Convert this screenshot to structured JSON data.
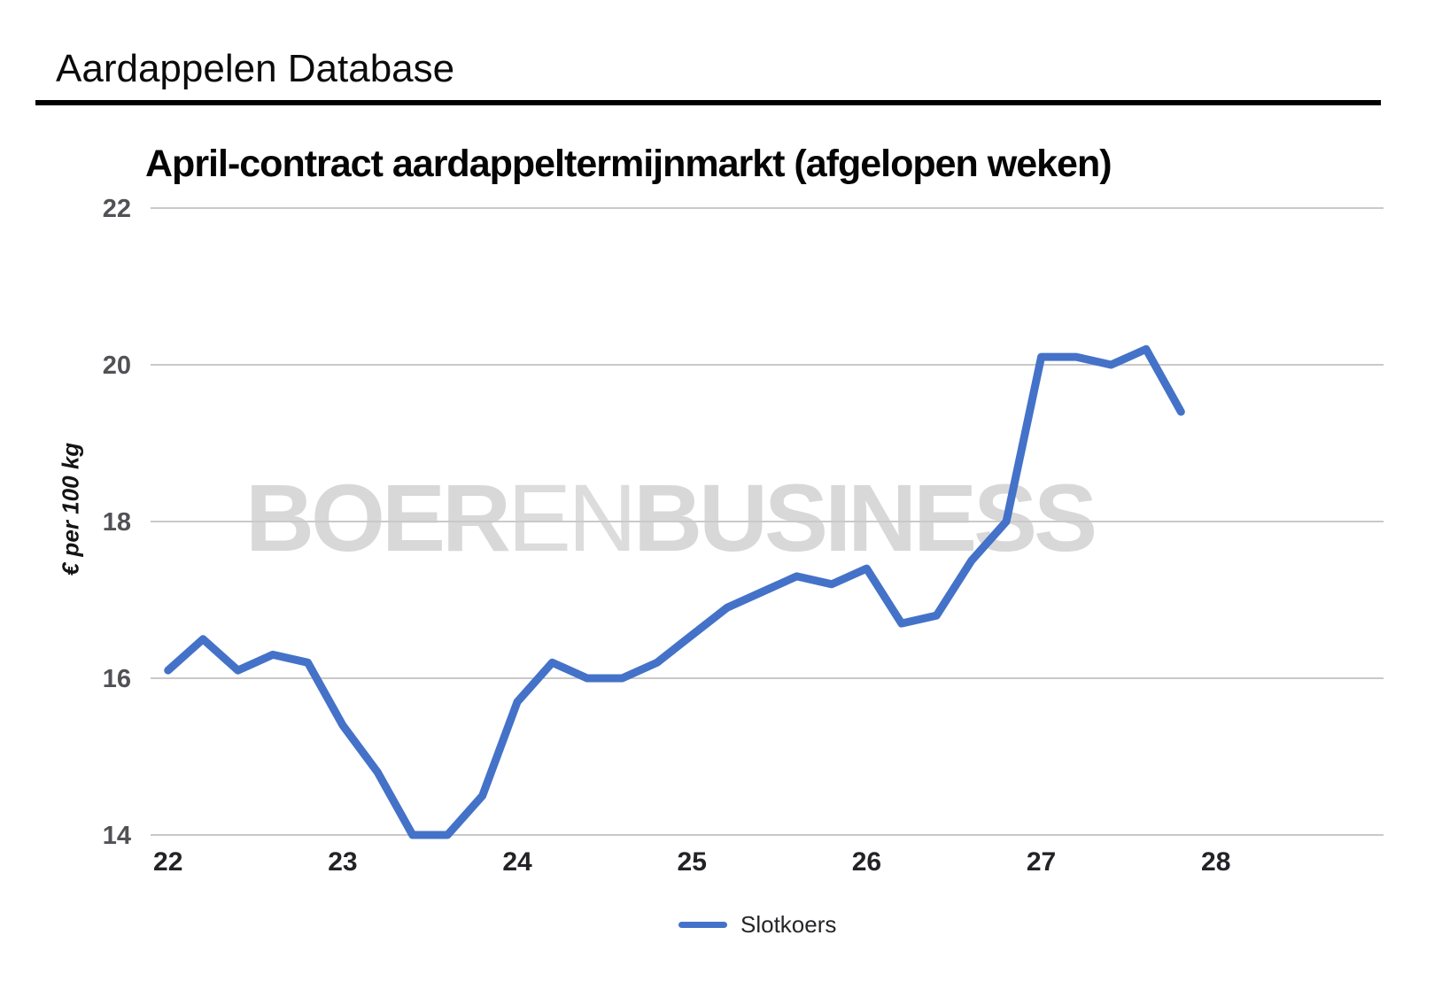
{
  "header": {
    "title": "Aardappelen Database"
  },
  "watermark": {
    "part1": "BOER",
    "part2": "EN",
    "part3": "BUSINESS"
  },
  "colors": {
    "line": "#4472c8",
    "grid": "#c9c9c9",
    "y_tick_text": "#515156",
    "x_tick_text": "#232327",
    "watermark_heavy": "#d8d8d8",
    "watermark_light": "#dcdcdc",
    "title_text": "#050505",
    "rule": "#000000"
  },
  "chart_data": {
    "type": "line",
    "title": "April-contract aardappeltermijnmarkt (afgelopen weken)",
    "xlabel": "",
    "ylabel": "€ per 100 kg",
    "x_ticks": [
      22,
      23,
      24,
      25,
      26,
      27,
      28
    ],
    "y_ticks": [
      14,
      16,
      18,
      20,
      22
    ],
    "xlim": [
      21.9,
      28.96
    ],
    "ylim": [
      14,
      22
    ],
    "grid": "horizontal",
    "legend_position": "bottom-center",
    "series": [
      {
        "name": "Slotkoers",
        "color": "#4472c8",
        "x": [
          22.0,
          22.2,
          22.4,
          22.6,
          22.8,
          23.0,
          23.2,
          23.4,
          23.6,
          23.8,
          24.0,
          24.2,
          24.4,
          24.6,
          24.8,
          25.0,
          25.2,
          25.4,
          25.6,
          25.8,
          26.0,
          26.2,
          26.4,
          26.6,
          26.8,
          27.0,
          27.2,
          27.4,
          27.6,
          27.8
        ],
        "y": [
          16.1,
          16.5,
          16.1,
          16.3,
          16.2,
          15.4,
          14.8,
          14.0,
          14.0,
          14.5,
          15.7,
          16.2,
          16.0,
          16.0,
          16.2,
          16.55,
          16.9,
          17.1,
          17.3,
          17.2,
          17.4,
          16.7,
          16.8,
          17.5,
          18.0,
          20.1,
          20.1,
          20.0,
          20.2,
          19.4
        ]
      }
    ]
  },
  "legend": {
    "label": "Slotkoers"
  }
}
